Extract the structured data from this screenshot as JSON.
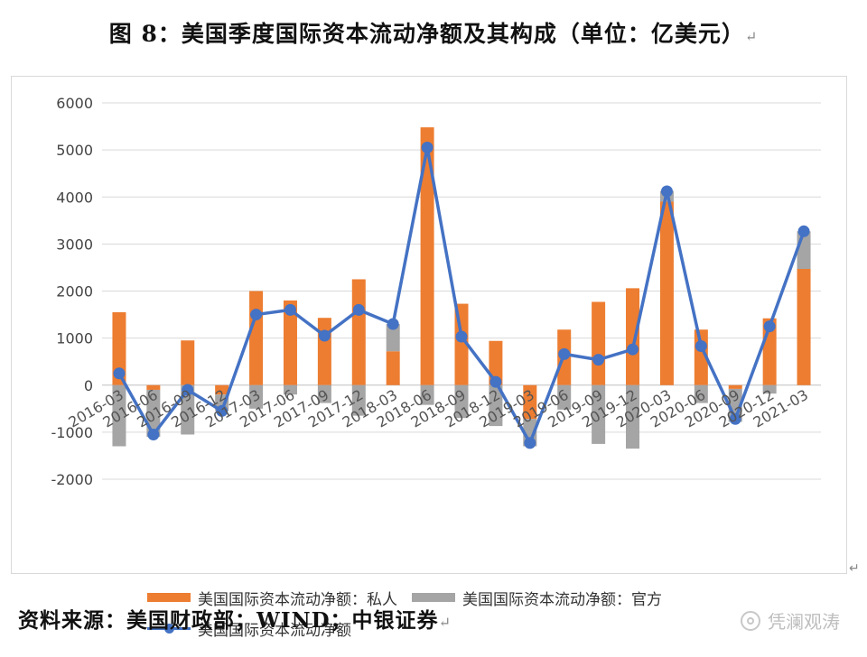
{
  "title": "图 8：美国季度国际资本流动净额及其构成（单位：亿美元）",
  "paragraph_mark": "↵",
  "source": "资料来源：美国财政部；WIND；中银证券",
  "watermark": "凭澜观涛",
  "colors": {
    "private": "#ed7d31",
    "official": "#a5a5a5",
    "net": "#4472c4"
  },
  "chart_data": {
    "type": "bar",
    "categories": [
      "2016-03",
      "2016-06",
      "2016-09",
      "2016-12",
      "2017-03",
      "2017-06",
      "2017-09",
      "2017-12",
      "2018-03",
      "2018-06",
      "2018-09",
      "2018-12",
      "2019-03",
      "2019-06",
      "2019-09",
      "2019-12",
      "2020-03",
      "2020-06",
      "2020-09",
      "2020-12",
      "2021-03"
    ],
    "series": [
      {
        "name": "美国国际资本流动净额：私人",
        "type": "bar",
        "color": "#ed7d31",
        "values": [
          1550,
          -100,
          950,
          -200,
          2000,
          1800,
          1430,
          2250,
          720,
          5480,
          1730,
          940,
          -720,
          1180,
          1770,
          2060,
          3900,
          1180,
          -80,
          1420,
          2470
        ]
      },
      {
        "name": "美国国际资本流动净额：官方",
        "type": "bar",
        "color": "#a5a5a5",
        "values": [
          -1300,
          -1000,
          -1050,
          -350,
          -500,
          -200,
          -380,
          -650,
          580,
          -420,
          -700,
          -870,
          -580,
          -520,
          -1250,
          -1350,
          230,
          -380,
          -700,
          -180,
          800
        ]
      },
      {
        "name": "美国国际资本流动净额",
        "type": "line",
        "color": "#4472c4",
        "values": [
          250,
          -1050,
          -100,
          -550,
          1500,
          1600,
          1050,
          1600,
          1300,
          5050,
          1030,
          70,
          -1230,
          660,
          540,
          760,
          4120,
          830,
          -720,
          1250,
          3270
        ]
      }
    ],
    "ylim": [
      -2000,
      6000
    ],
    "yticks": [
      "6000",
      "5000",
      "4000",
      "3000",
      "2000",
      "1000",
      "0",
      "-1000",
      "-2000"
    ],
    "grid": true,
    "legend_position": "bottom"
  }
}
